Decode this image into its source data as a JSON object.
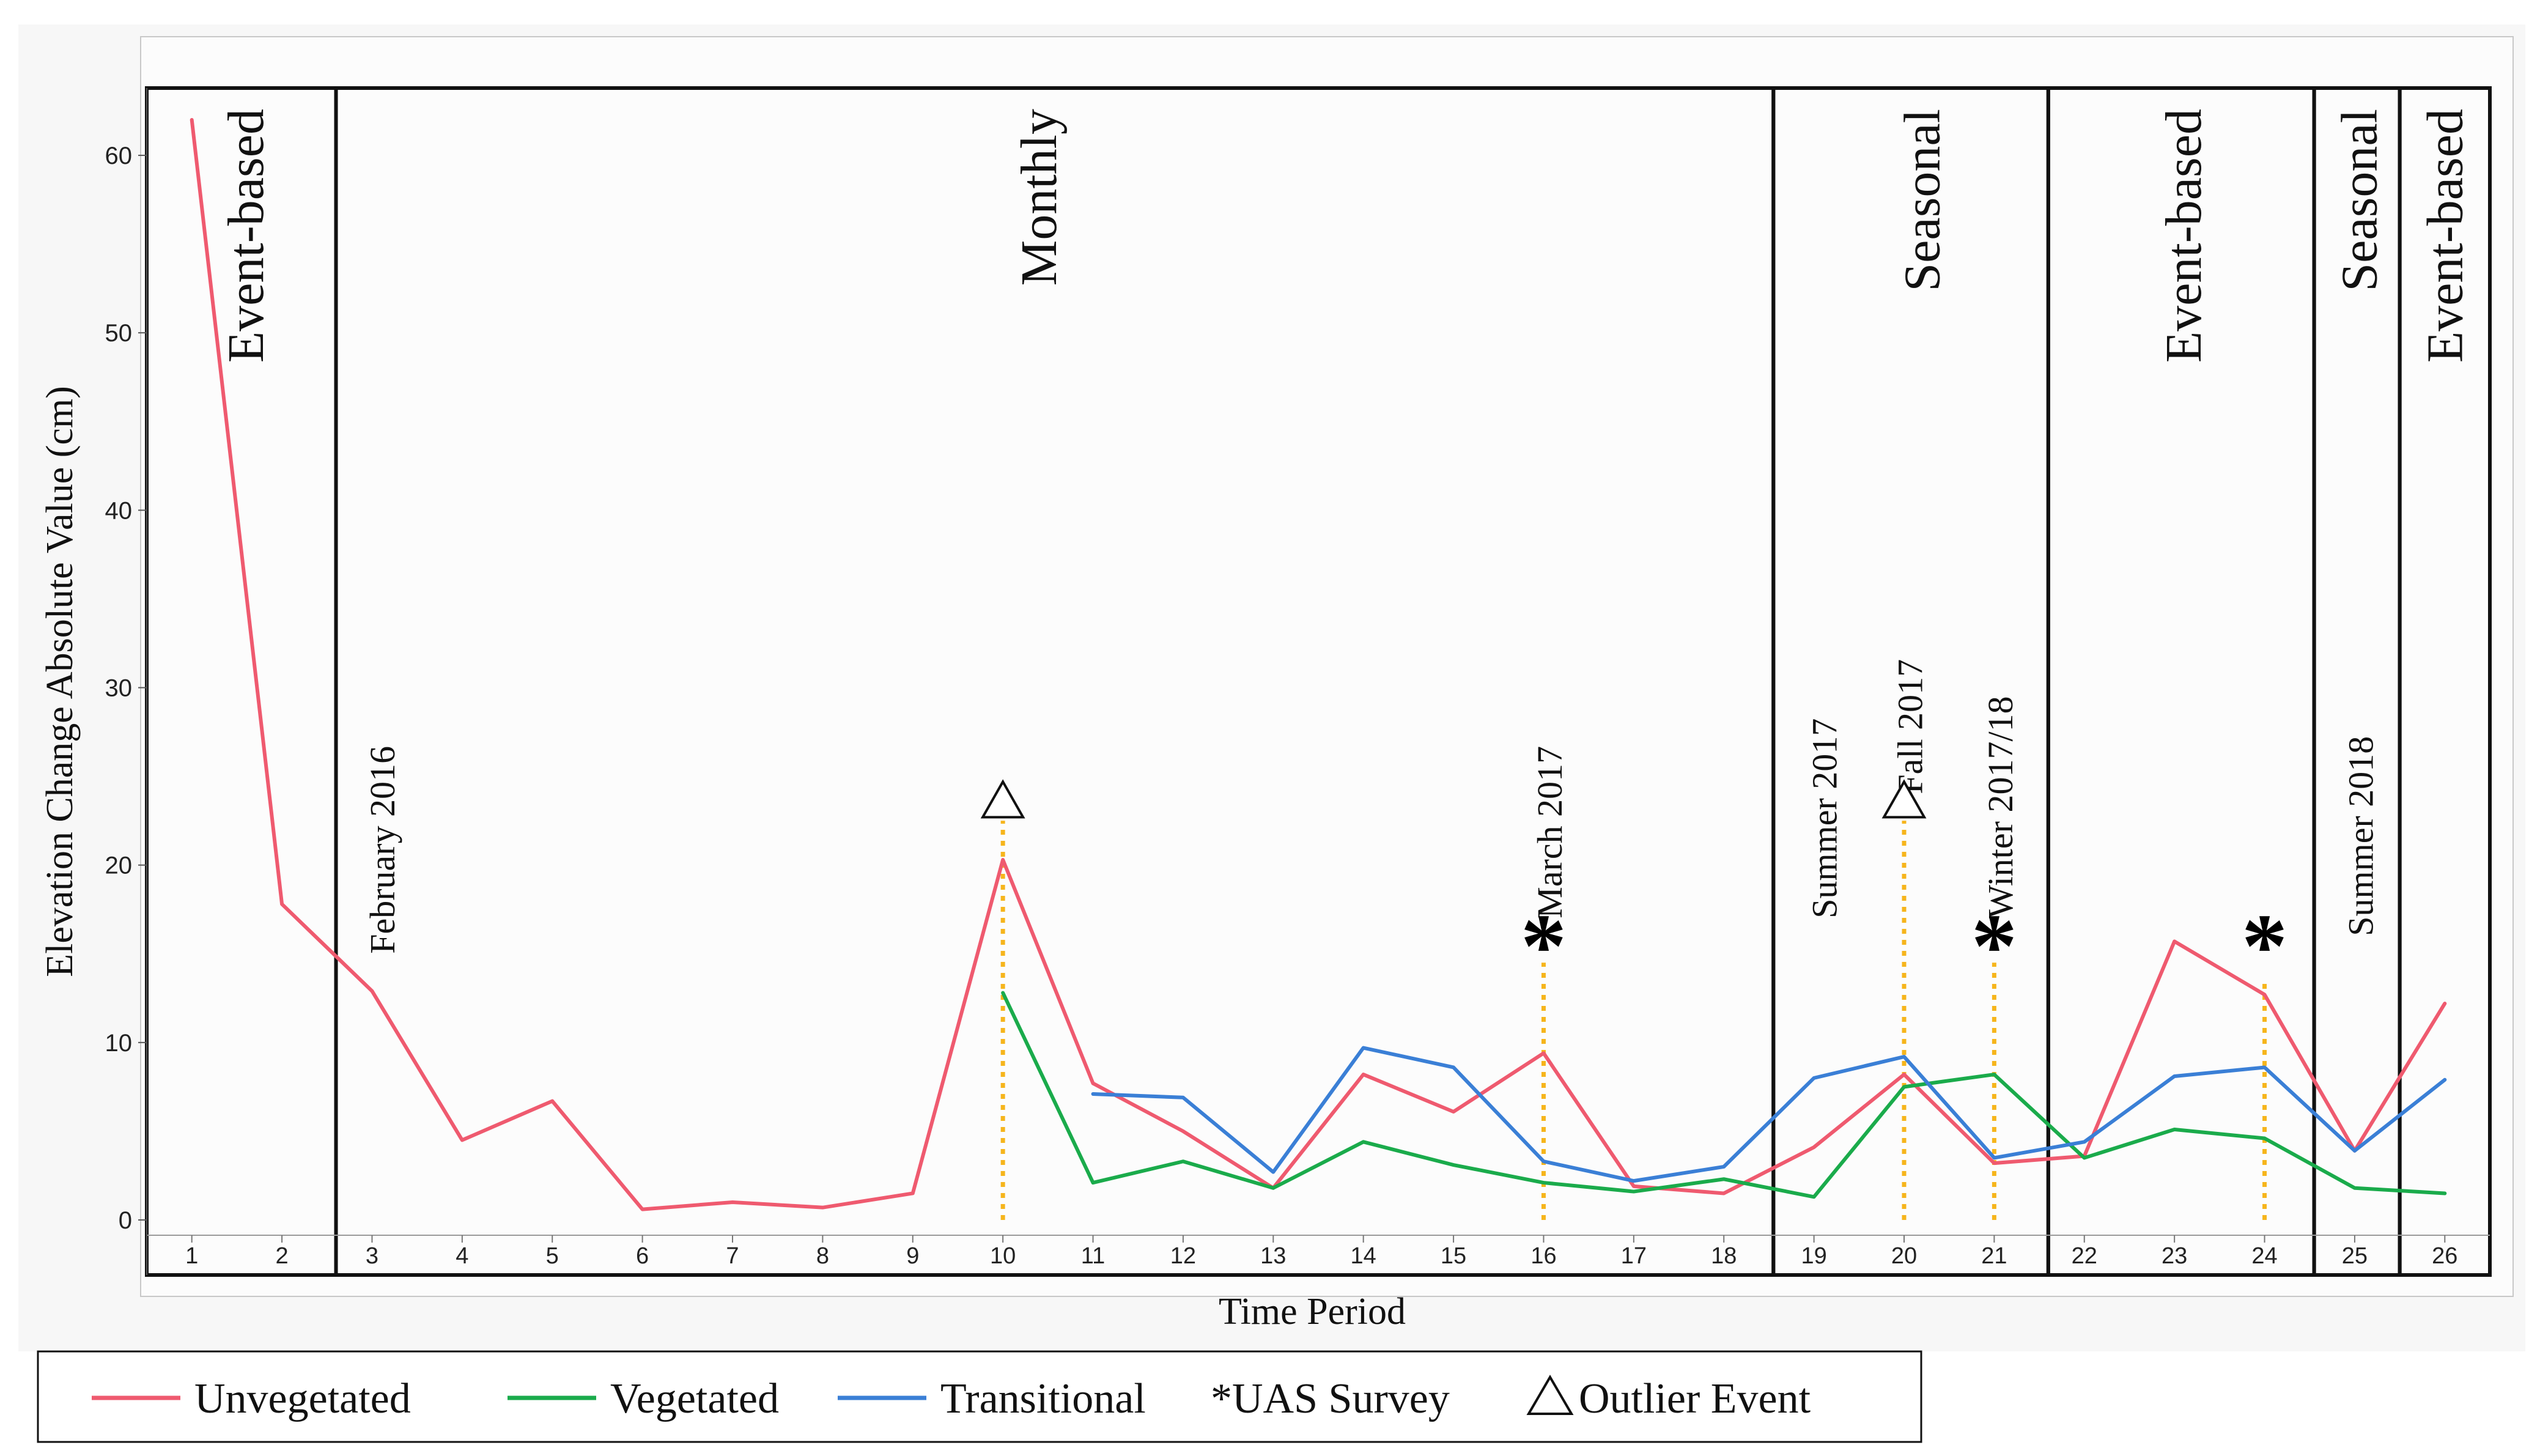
{
  "chart_data": {
    "type": "line",
    "title": "",
    "xlabel": "Time Period",
    "ylabel": "Elevation Change Absolute Value (cm)",
    "x": [
      1,
      2,
      3,
      4,
      5,
      6,
      7,
      8,
      9,
      10,
      11,
      12,
      13,
      14,
      15,
      16,
      17,
      18,
      19,
      20,
      21,
      22,
      23,
      24,
      25,
      26
    ],
    "xlim": [
      0.5,
      26.5
    ],
    "ylim": [
      -1,
      64
    ],
    "yticks": [
      0,
      10,
      20,
      30,
      40,
      50,
      60
    ],
    "grid": false,
    "series": [
      {
        "name": "Unvegetated",
        "color": "#ef5a6f",
        "values": [
          62,
          17.8,
          12.9,
          4.5,
          6.7,
          0.6,
          1.0,
          0.7,
          1.5,
          20.3,
          7.7,
          5.0,
          1.8,
          8.2,
          6.1,
          9.4,
          1.9,
          1.5,
          4.1,
          8.2,
          3.2,
          3.6,
          15.7,
          12.7,
          3.9,
          12.2
        ]
      },
      {
        "name": "Vegetated",
        "color": "#1aab4b",
        "values": [
          null,
          null,
          null,
          null,
          null,
          null,
          null,
          null,
          null,
          12.8,
          2.1,
          3.3,
          1.8,
          4.4,
          3.1,
          2.1,
          1.6,
          2.3,
          1.3,
          7.5,
          8.2,
          3.5,
          5.1,
          4.6,
          1.8,
          1.5
        ]
      },
      {
        "name": "Transitional",
        "color": "#3a7fd6",
        "values": [
          null,
          null,
          null,
          null,
          null,
          null,
          null,
          null,
          null,
          null,
          7.1,
          6.9,
          2.7,
          9.7,
          8.6,
          3.3,
          2.2,
          3.0,
          8.0,
          9.2,
          3.5,
          4.4,
          8.1,
          8.6,
          3.9,
          7.9
        ]
      }
    ],
    "periods": [
      {
        "label": "Event-based",
        "start": 0.5,
        "end": 2.6,
        "labelX": 1.6
      },
      {
        "label": "Monthly",
        "start": 2.6,
        "end": 18.55,
        "labelX": 10.4
      },
      {
        "label": "Seasonal",
        "start": 18.55,
        "end": 21.6,
        "labelX": 20.2
      },
      {
        "label": "Event-based",
        "start": 21.6,
        "end": 24.55,
        "labelX": 23.1
      },
      {
        "label": "Seasonal",
        "start": 24.55,
        "end": 25.5,
        "labelX": 25.05
      },
      {
        "label": "Event-based",
        "start": 25.5,
        "end": 26.5,
        "labelX": 26.0
      }
    ],
    "annotations": [
      {
        "x": 3.1,
        "y": 15,
        "text": "February 2016"
      },
      {
        "x": 16.05,
        "y": 17,
        "text": "March 2017"
      },
      {
        "x": 19.1,
        "y": 17,
        "text": "Summer 2017"
      },
      {
        "x": 20.05,
        "y": 24,
        "text": "Fall 2017"
      },
      {
        "x": 21.05,
        "y": 17,
        "text": "Winter 2017/18"
      },
      {
        "x": 25.05,
        "y": 16,
        "text": "Summer 2018"
      }
    ],
    "uas_surveys": [
      16,
      21,
      24
    ],
    "outlier_events": [
      10,
      20
    ],
    "guides": [
      {
        "x": 10,
        "y_from": 0,
        "y_to": 22.5
      },
      {
        "x": 16,
        "y_from": 0,
        "y_to": 14.5
      },
      {
        "x": 20,
        "y_from": 0,
        "y_to": 22.5
      },
      {
        "x": 21,
        "y_from": 0,
        "y_to": 14.5
      },
      {
        "x": 24,
        "y_from": 0,
        "y_to": 13.5
      }
    ],
    "guide_color": "#f6b51c",
    "legend": {
      "position": "bottom-left",
      "items": [
        {
          "label": "Unvegetated",
          "kind": "line",
          "color": "#ef5a6f"
        },
        {
          "label": "Vegetated",
          "kind": "line",
          "color": "#1aab4b"
        },
        {
          "label": "Transitional",
          "kind": "line",
          "color": "#3a7fd6"
        },
        {
          "label": "*UAS Survey",
          "kind": "text"
        },
        {
          "label": "Outlier Event",
          "kind": "triangle"
        }
      ]
    }
  }
}
